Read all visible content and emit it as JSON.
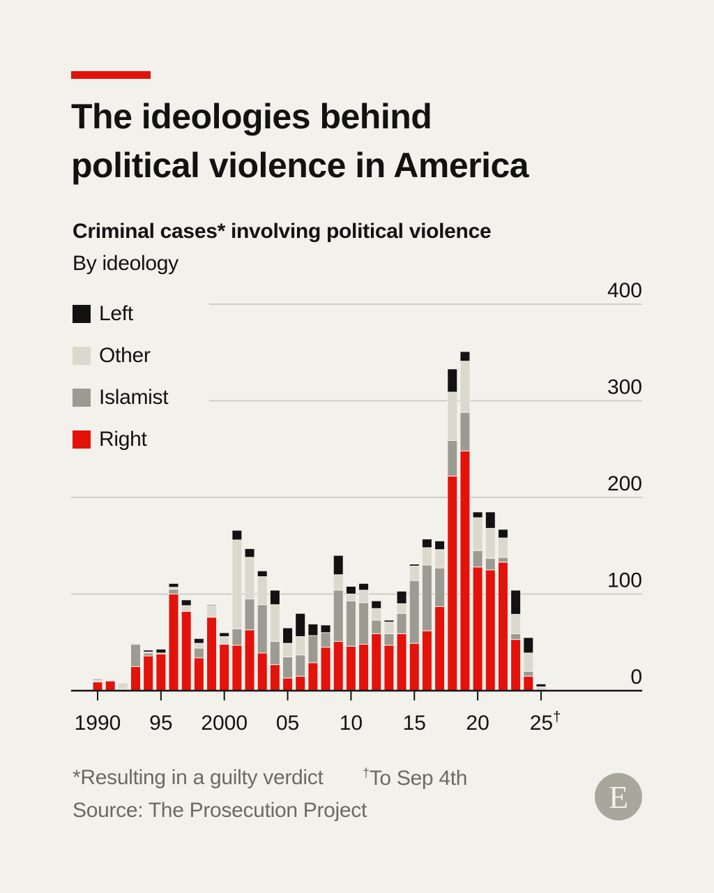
{
  "header": {
    "title_line1": "The ideologies behind",
    "title_line2": "political violence in America",
    "subtitle": "Criminal cases* involving political violence",
    "subsubtitle": "By ideology"
  },
  "legend": [
    {
      "label": "Left",
      "color": "#121212"
    },
    {
      "label": "Other",
      "color": "#dbd8cd"
    },
    {
      "label": "Islamist",
      "color": "#9c9b91"
    },
    {
      "label": "Right",
      "color": "#e3120b"
    }
  ],
  "chart_data": {
    "type": "bar",
    "stacked": true,
    "title": "Criminal cases* involving political violence",
    "subtitle": "By ideology",
    "x": [
      1990,
      1991,
      1992,
      1993,
      1994,
      1995,
      1996,
      1997,
      1998,
      1999,
      2000,
      2001,
      2002,
      2003,
      2004,
      2005,
      2006,
      2007,
      2008,
      2009,
      2010,
      2011,
      2012,
      2013,
      2014,
      2015,
      2016,
      2017,
      2018,
      2019,
      2020,
      2021,
      2022,
      2023,
      2024,
      2025
    ],
    "xtick_labels": [
      {
        "year": 1990,
        "label": "1990"
      },
      {
        "year": 1995,
        "label": "95"
      },
      {
        "year": 2000,
        "label": "2000"
      },
      {
        "year": 2005,
        "label": "05"
      },
      {
        "year": 2010,
        "label": "10"
      },
      {
        "year": 2015,
        "label": "15"
      },
      {
        "year": 2020,
        "label": "20"
      },
      {
        "year": 2025,
        "label": "25",
        "suffix": "†"
      }
    ],
    "yticks": [
      0,
      100,
      200,
      300,
      400
    ],
    "ylim": [
      0,
      400
    ],
    "series": [
      {
        "name": "Right",
        "color": "#e3120b",
        "values": [
          9,
          10,
          1,
          25,
          36,
          38,
          100,
          82,
          34,
          76,
          48,
          47,
          63,
          39,
          27,
          13,
          15,
          29,
          45,
          51,
          46,
          48,
          59,
          47,
          59,
          49,
          62,
          87,
          222,
          248,
          128,
          125,
          133,
          53,
          15,
          0
        ]
      },
      {
        "name": "Islamist",
        "color": "#9c9b91",
        "values": [
          1,
          0,
          1,
          23,
          3,
          1,
          5,
          0,
          10,
          0,
          0,
          17,
          32,
          50,
          24,
          22,
          22,
          28,
          15,
          53,
          47,
          43,
          14,
          12,
          21,
          65,
          68,
          40,
          37,
          40,
          17,
          12,
          5,
          6,
          5,
          0
        ]
      },
      {
        "name": "Other",
        "color": "#dbd8cd",
        "values": [
          1,
          0,
          6,
          1,
          1,
          0,
          2,
          6,
          5,
          12,
          8,
          92,
          43,
          29,
          38,
          14,
          19,
          0,
          0,
          16,
          7,
          13,
          12,
          12,
          10,
          15,
          18,
          19,
          50,
          53,
          34,
          31,
          20,
          20,
          19,
          4
        ]
      },
      {
        "name": "Left",
        "color": "#121212",
        "values": [
          1,
          0,
          0,
          0,
          2,
          4,
          4,
          6,
          5,
          1,
          4,
          10,
          9,
          6,
          15,
          16,
          24,
          12,
          8,
          20,
          8,
          7,
          8,
          2,
          13,
          2,
          9,
          9,
          24,
          10,
          6,
          17,
          9,
          25,
          16,
          3
        ]
      }
    ]
  },
  "footer": {
    "footnote": "*Resulting in a guilty verdict",
    "footnote2_mark": "†",
    "footnote2": "To Sep 4th",
    "source": "Source: The Prosecution Project",
    "logo_letter": "E"
  }
}
